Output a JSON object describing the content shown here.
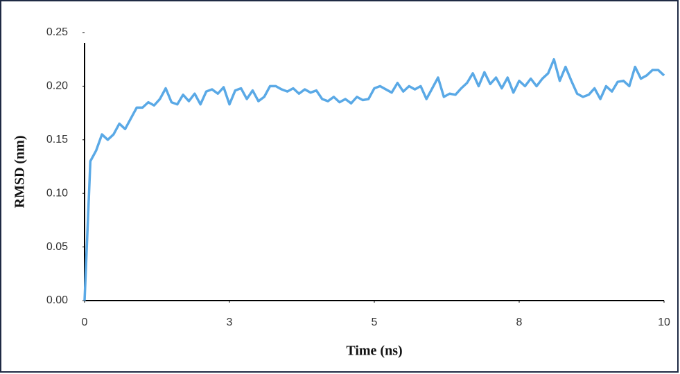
{
  "chart_data": {
    "type": "line",
    "xlabel": "Time (ns)",
    "ylabel": "RMSD (nm)",
    "x": [
      0,
      0.1,
      0.2,
      0.3,
      0.4,
      0.5,
      0.6,
      0.7,
      0.8,
      0.9,
      1,
      1.1,
      1.2,
      1.3,
      1.4,
      1.5,
      1.6,
      1.7,
      1.8,
      1.9,
      2,
      2.1,
      2.2,
      2.3,
      2.4,
      2.5,
      2.6,
      2.7,
      2.8,
      2.9,
      3,
      3.1,
      3.2,
      3.3,
      3.4,
      3.5,
      3.6,
      3.7,
      3.8,
      3.9,
      4,
      4.1,
      4.2,
      4.3,
      4.4,
      4.5,
      4.6,
      4.7,
      4.8,
      4.9,
      5,
      5.1,
      5.2,
      5.3,
      5.4,
      5.5,
      5.6,
      5.7,
      5.8,
      5.9,
      6,
      6.1,
      6.2,
      6.3,
      6.4,
      6.5,
      6.6,
      6.7,
      6.8,
      6.9,
      7,
      7.1,
      7.2,
      7.3,
      7.4,
      7.5,
      7.6,
      7.7,
      7.8,
      7.9,
      8,
      8.1,
      8.2,
      8.3,
      8.4,
      8.5,
      8.6,
      8.7,
      8.8,
      8.9,
      9,
      9.1,
      9.2,
      9.3,
      9.4,
      9.5,
      9.6,
      9.7,
      9.8,
      9.9,
      10
    ],
    "series": [
      {
        "color": "#5aa9e6",
        "values": [
          0,
          0.13,
          0.14,
          0.155,
          0.15,
          0.155,
          0.165,
          0.16,
          0.17,
          0.18,
          0.18,
          0.185,
          0.182,
          0.188,
          0.198,
          0.185,
          0.183,
          0.192,
          0.186,
          0.193,
          0.183,
          0.195,
          0.197,
          0.193,
          0.199,
          0.183,
          0.196,
          0.198,
          0.188,
          0.196,
          0.186,
          0.19,
          0.2,
          0.2,
          0.197,
          0.195,
          0.198,
          0.193,
          0.197,
          0.194,
          0.196,
          0.188,
          0.186,
          0.19,
          0.185,
          0.188,
          0.184,
          0.19,
          0.187,
          0.188,
          0.198,
          0.2,
          0.197,
          0.194,
          0.203,
          0.195,
          0.2,
          0.197,
          0.2,
          0.188,
          0.198,
          0.208,
          0.19,
          0.193,
          0.192,
          0.198,
          0.203,
          0.212,
          0.2,
          0.213,
          0.202,
          0.208,
          0.198,
          0.208,
          0.194,
          0.205,
          0.2,
          0.207,
          0.2,
          0.207,
          0.212,
          0.225,
          0.205,
          0.218,
          0.205,
          0.193,
          0.19,
          0.192,
          0.198,
          0.188,
          0.2,
          0.195,
          0.204,
          0.205,
          0.2,
          0.218,
          0.207,
          0.21,
          0.215,
          0.215,
          0.21
        ]
      }
    ],
    "xlim": [
      0,
      10
    ],
    "xticks": [
      0,
      {
        "value": 2.5,
        "label": "3"
      },
      5,
      {
        "value": 7.5,
        "label": "8"
      },
      10
    ],
    "ylim": [
      0,
      0.25
    ],
    "yticks": [
      {
        "value": 0,
        "label": "0.00"
      },
      {
        "value": 0.05,
        "label": "0.05"
      },
      {
        "value": 0.1,
        "label": "0.10"
      },
      {
        "value": 0.15,
        "label": "0.15"
      },
      {
        "value": 0.2,
        "label": "0.20"
      },
      0.25
    ],
    "grid": false
  }
}
